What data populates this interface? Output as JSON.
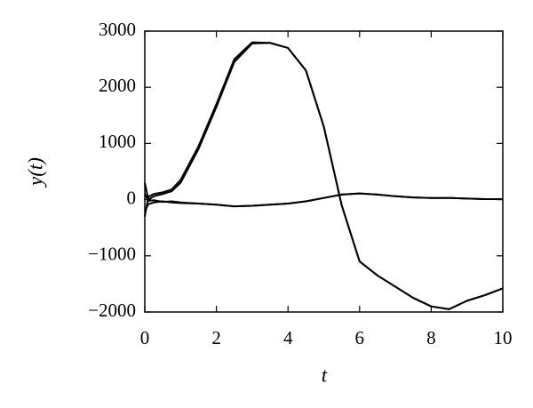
{
  "chart_data": {
    "type": "line",
    "x_label": "t",
    "y_label": "y(t)",
    "x": [
      0,
      0.1,
      0.25,
      0.5,
      0.75,
      1,
      1.25,
      1.5,
      2,
      2.5,
      3,
      3.5,
      4,
      4.5,
      5,
      5.5,
      6,
      6.5,
      7,
      7.5,
      8,
      8.5,
      9,
      9.5,
      10
    ],
    "series": [
      {
        "color": "#000000",
        "values": [
          -300,
          50,
          100,
          130,
          180,
          350,
          650,
          950,
          1700,
          2500,
          2800,
          2790,
          2700,
          2300,
          1300,
          -100,
          -1100,
          -1350,
          -1550,
          -1750,
          -1900,
          -1950,
          -1800,
          -1700,
          -1580
        ]
      },
      {
        "color": "#000000",
        "values": [
          300,
          0,
          60,
          100,
          150,
          300,
          600,
          900,
          1650,
          2450,
          2780,
          2790,
          2700,
          2300,
          1300,
          -100,
          -1100,
          -1350,
          -1550,
          -1750,
          -1900,
          -1950,
          -1800,
          -1700,
          -1580
        ]
      },
      {
        "color": "#000000",
        "values": [
          -200,
          -80,
          -50,
          -30,
          -50,
          -60,
          -65,
          -70,
          -90,
          -120,
          -110,
          -90,
          -70,
          -30,
          30,
          90,
          110,
          90,
          60,
          40,
          30,
          30,
          20,
          10,
          10
        ]
      },
      {
        "color": "#000000",
        "values": [
          100,
          -20,
          -10,
          -40,
          -30,
          -50,
          -60,
          -70,
          -90,
          -120,
          -110,
          -90,
          -70,
          -30,
          30,
          90,
          110,
          90,
          60,
          40,
          30,
          30,
          20,
          10,
          10
        ]
      }
    ],
    "xlim": [
      0,
      10
    ],
    "xticks": [
      0,
      2,
      4,
      6,
      8,
      10
    ],
    "ylim": [
      -2000,
      3000
    ],
    "yticks": [
      {
        "value": -2000,
        "label": "−2000"
      },
      {
        "value": -1000,
        "label": "−1000"
      },
      0,
      1000,
      2000,
      3000
    ],
    "grid": false
  }
}
